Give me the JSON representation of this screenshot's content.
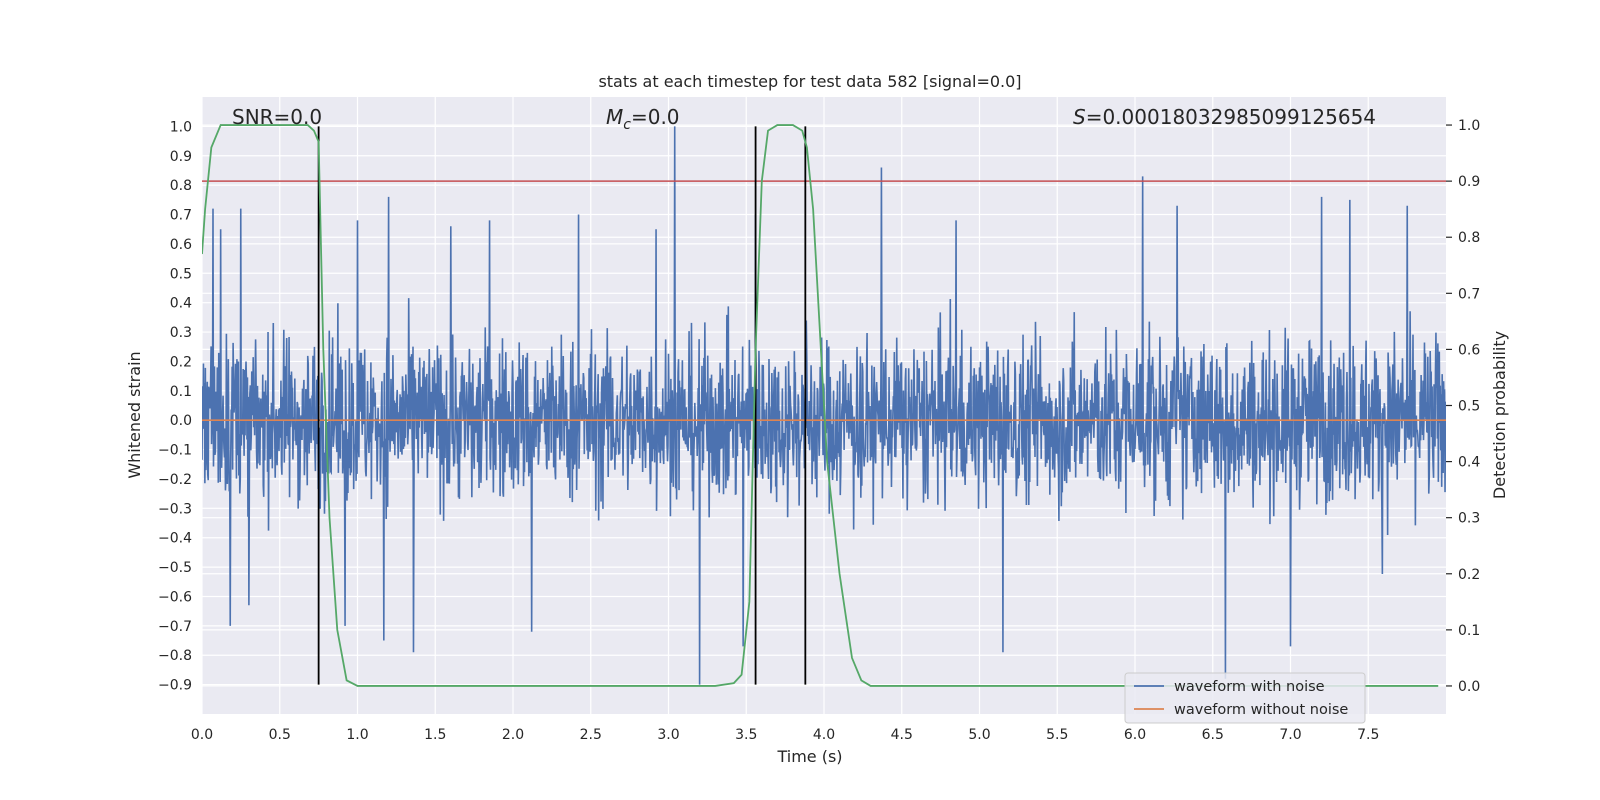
{
  "chart_data": {
    "type": "line",
    "title": "stats at each timestep for test data 582 [signal=0.0]",
    "xlabel": "Time (s)",
    "ylabel_left": "Whitened strain",
    "ylabel_right": "Detection probability",
    "xlim": [
      0.0,
      8.0
    ],
    "ylim_left": [
      -1.0,
      1.1
    ],
    "ylim_right": [
      -0.05,
      1.05
    ],
    "x_ticks": [
      "0.0",
      "0.5",
      "1.0",
      "1.5",
      "2.0",
      "2.5",
      "3.0",
      "3.5",
      "4.0",
      "4.5",
      "5.0",
      "5.5",
      "6.0",
      "6.5",
      "7.0",
      "7.5"
    ],
    "y_ticks_left": [
      "1.0",
      "0.9",
      "0.8",
      "0.7",
      "0.6",
      "0.5",
      "0.4",
      "0.3",
      "0.2",
      "0.1",
      "0.0",
      "−0.1",
      "−0.2",
      "−0.3",
      "−0.4",
      "−0.5",
      "−0.6",
      "−0.7",
      "−0.8",
      "−0.9"
    ],
    "y_ticks_right": [
      "1.0",
      "0.9",
      "0.8",
      "0.7",
      "0.6",
      "0.5",
      "0.4",
      "0.3",
      "0.2",
      "0.1",
      "0.0"
    ],
    "annotations": {
      "snr": "SNR=0.0",
      "mc_symbol": "M",
      "mc_sub": "c",
      "mc_value": "=0.0",
      "s_symbol": "S",
      "s_value": "=0.00018032985099125654"
    },
    "legend": [
      "waveform with noise",
      "waveform without noise"
    ],
    "colors": {
      "noise": "#4c72b0",
      "clean": "#dd8452",
      "probability": "#55a868",
      "threshold": "#c44e52",
      "vlines": "#000000",
      "background": "#eaeaf2"
    },
    "threshold_right": 0.9,
    "vertical_lines": [
      0.75,
      3.56,
      3.88
    ],
    "vertical_line_range_left": [
      -0.9,
      1.0
    ],
    "noise_envelope": {
      "typical_max": 0.45,
      "typical_min": -0.45,
      "max": 1.0,
      "min": -0.9
    },
    "noise_peaks": [
      {
        "x": 0.07,
        "y": 0.72
      },
      {
        "x": 0.12,
        "y": 0.65
      },
      {
        "x": 0.25,
        "y": 0.72
      },
      {
        "x": 1.0,
        "y": 0.68
      },
      {
        "x": 1.2,
        "y": 0.76
      },
      {
        "x": 1.6,
        "y": 0.66
      },
      {
        "x": 1.85,
        "y": 0.68
      },
      {
        "x": 2.42,
        "y": 0.7
      },
      {
        "x": 2.92,
        "y": 0.65
      },
      {
        "x": 3.04,
        "y": 1.0
      },
      {
        "x": 3.56,
        "y": 0.7
      },
      {
        "x": 4.37,
        "y": 0.86
      },
      {
        "x": 4.85,
        "y": 0.68
      },
      {
        "x": 6.05,
        "y": 0.83
      },
      {
        "x": 6.27,
        "y": 0.73
      },
      {
        "x": 7.2,
        "y": 0.76
      },
      {
        "x": 7.38,
        "y": 0.75
      },
      {
        "x": 7.75,
        "y": 0.73
      }
    ],
    "noise_troughs": [
      {
        "x": 0.18,
        "y": -0.7
      },
      {
        "x": 0.3,
        "y": -0.63
      },
      {
        "x": 0.92,
        "y": -0.7
      },
      {
        "x": 1.17,
        "y": -0.75
      },
      {
        "x": 1.36,
        "y": -0.79
      },
      {
        "x": 2.12,
        "y": -0.72
      },
      {
        "x": 3.2,
        "y": -0.9
      },
      {
        "x": 3.48,
        "y": -0.77
      },
      {
        "x": 5.15,
        "y": -0.79
      },
      {
        "x": 6.58,
        "y": -0.88
      },
      {
        "x": 7.0,
        "y": -0.77
      }
    ],
    "clean_series": {
      "x": [
        0.0,
        8.0
      ],
      "y": [
        0.0,
        0.0
      ]
    },
    "probability_series": {
      "x": [
        0.0,
        0.02,
        0.06,
        0.12,
        0.2,
        0.3,
        0.4,
        0.5,
        0.6,
        0.68,
        0.72,
        0.75,
        0.78,
        0.82,
        0.87,
        0.93,
        1.0,
        1.5,
        2.0,
        2.5,
        3.0,
        3.3,
        3.42,
        3.47,
        3.52,
        3.56,
        3.6,
        3.64,
        3.7,
        3.8,
        3.86,
        3.89,
        3.93,
        3.97,
        4.02,
        4.1,
        4.18,
        4.24,
        4.3,
        5.0,
        6.0,
        7.0,
        7.95
      ],
      "y": [
        0.77,
        0.85,
        0.96,
        1.0,
        1.0,
        1.0,
        1.0,
        1.0,
        1.0,
        1.0,
        0.99,
        0.97,
        0.6,
        0.3,
        0.1,
        0.01,
        0.0,
        0.0,
        0.0,
        0.0,
        0.0,
        0.0,
        0.005,
        0.02,
        0.15,
        0.6,
        0.9,
        0.99,
        1.0,
        1.0,
        0.99,
        0.96,
        0.85,
        0.65,
        0.4,
        0.2,
        0.05,
        0.01,
        0.0,
        0.0,
        0.0,
        0.0,
        0.0
      ]
    }
  }
}
